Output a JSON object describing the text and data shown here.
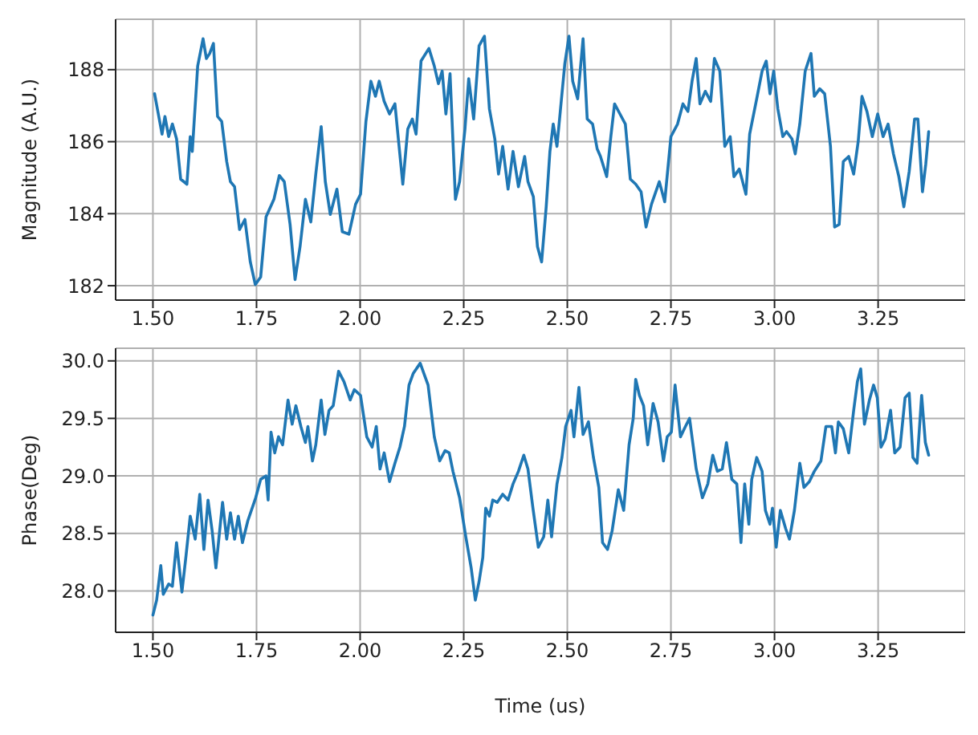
{
  "chart_data": [
    {
      "type": "line",
      "ylabel": "Magnitude  (A.U.)",
      "grid": true,
      "marker": "none",
      "line_style": "solid",
      "xlim": [
        1.41,
        3.46
      ],
      "ylim": [
        181.6,
        189.4
      ],
      "xticks": [
        {
          "value": 1.5,
          "label": "1.50"
        },
        {
          "value": 1.75,
          "label": "1.75"
        },
        {
          "value": 2.0,
          "label": "2.00"
        },
        {
          "value": 2.25,
          "label": "2.25"
        },
        {
          "value": 2.5,
          "label": "2.50"
        },
        {
          "value": 2.75,
          "label": "2.75"
        },
        {
          "value": 3.0,
          "label": "3.00"
        },
        {
          "value": 3.25,
          "label": "3.25"
        }
      ],
      "yticks": [
        182,
        184,
        186,
        188
      ],
      "series": [
        {
          "color": "#1f77b4",
          "x": [
            1.504,
            1.513,
            1.522,
            1.529,
            1.538,
            1.547,
            1.557,
            1.567,
            1.582,
            1.59,
            1.595,
            1.608,
            1.621,
            1.629,
            1.637,
            1.646,
            1.656,
            1.666,
            1.678,
            1.687,
            1.697,
            1.709,
            1.722,
            1.735,
            1.747,
            1.76,
            1.773,
            1.792,
            1.805,
            1.817,
            1.831,
            1.843,
            1.855,
            1.868,
            1.881,
            1.893,
            1.906,
            1.916,
            1.928,
            1.944,
            1.957,
            1.973,
            1.989,
            2.001,
            2.014,
            2.026,
            2.037,
            2.046,
            2.058,
            2.071,
            2.084,
            2.094,
            2.103,
            2.115,
            2.126,
            2.135,
            2.147,
            2.166,
            2.179,
            2.189,
            2.198,
            2.207,
            2.217,
            2.23,
            2.24,
            2.253,
            2.262,
            2.274,
            2.287,
            2.3,
            2.312,
            2.325,
            2.334,
            2.344,
            2.357,
            2.369,
            2.382,
            2.397,
            2.405,
            2.418,
            2.428,
            2.438,
            2.449,
            2.458,
            2.466,
            2.475,
            2.483,
            2.494,
            2.504,
            2.513,
            2.525,
            2.538,
            2.548,
            2.561,
            2.572,
            2.58,
            2.595,
            2.605,
            2.614,
            2.627,
            2.64,
            2.652,
            2.665,
            2.678,
            2.69,
            2.703,
            2.722,
            2.735,
            2.75,
            2.766,
            2.779,
            2.791,
            2.801,
            2.811,
            2.82,
            2.833,
            2.846,
            2.855,
            2.868,
            2.88,
            2.893,
            2.902,
            2.915,
            2.931,
            2.94,
            2.957,
            2.97,
            2.98,
            2.989,
            2.998,
            3.008,
            3.02,
            3.029,
            3.042,
            3.05,
            3.061,
            3.074,
            3.088,
            3.096,
            3.109,
            3.121,
            3.135,
            3.145,
            3.156,
            3.166,
            3.179,
            3.191,
            3.202,
            3.211,
            3.223,
            3.236,
            3.249,
            3.262,
            3.274,
            3.287,
            3.3,
            3.312,
            3.325,
            3.338,
            3.346,
            3.357,
            3.365,
            3.372
          ],
          "values": [
            187.33,
            186.77,
            186.21,
            186.7,
            186.14,
            186.49,
            186.08,
            184.96,
            184.82,
            186.14,
            185.73,
            188.1,
            188.86,
            188.31,
            188.45,
            188.73,
            186.7,
            186.56,
            185.45,
            184.89,
            184.75,
            183.56,
            183.84,
            182.66,
            182.03,
            182.24,
            183.91,
            184.4,
            185.06,
            184.89,
            183.7,
            182.17,
            183.08,
            184.4,
            183.77,
            185.1,
            186.42,
            184.89,
            183.98,
            184.68,
            183.5,
            183.43,
            184.26,
            184.54,
            186.56,
            187.68,
            187.26,
            187.68,
            187.12,
            186.77,
            187.05,
            185.87,
            184.82,
            186.35,
            186.63,
            186.21,
            188.24,
            188.59,
            188.1,
            187.61,
            187.96,
            186.77,
            187.89,
            184.4,
            184.89,
            186.35,
            187.75,
            186.63,
            188.66,
            188.93,
            186.91,
            186.08,
            185.1,
            185.87,
            184.68,
            185.73,
            184.75,
            185.59,
            184.89,
            184.47,
            183.08,
            182.66,
            184.19,
            185.73,
            186.49,
            185.87,
            186.84,
            188.17,
            188.93,
            187.68,
            187.19,
            188.86,
            186.63,
            186.49,
            185.8,
            185.59,
            185.03,
            186.14,
            187.05,
            186.77,
            186.49,
            184.96,
            184.82,
            184.61,
            183.63,
            184.26,
            184.89,
            184.33,
            186.14,
            186.49,
            187.05,
            186.84,
            187.68,
            188.31,
            187.05,
            187.4,
            187.12,
            188.31,
            187.96,
            185.87,
            186.14,
            185.03,
            185.24,
            184.54,
            186.21,
            187.19,
            187.96,
            188.24,
            187.33,
            187.96,
            186.91,
            186.14,
            186.28,
            186.08,
            185.66,
            186.49,
            187.96,
            188.45,
            187.26,
            187.47,
            187.33,
            185.87,
            183.63,
            183.7,
            185.45,
            185.59,
            185.1,
            186.01,
            187.26,
            186.84,
            186.14,
            186.77,
            186.14,
            186.49,
            185.66,
            185.03,
            184.19,
            185.17,
            186.63,
            186.63,
            184.61,
            185.38,
            186.28
          ]
        }
      ]
    },
    {
      "type": "line",
      "xlabel": "Time (us)",
      "ylabel": "Phase(Deg)",
      "grid": true,
      "marker": "none",
      "line_style": "solid",
      "xlim": [
        1.41,
        3.46
      ],
      "ylim": [
        27.64,
        30.11
      ],
      "xticks": [
        {
          "value": 1.5,
          "label": "1.50"
        },
        {
          "value": 1.75,
          "label": "1.75"
        },
        {
          "value": 2.0,
          "label": "2.00"
        },
        {
          "value": 2.25,
          "label": "2.25"
        },
        {
          "value": 2.5,
          "label": "2.50"
        },
        {
          "value": 2.75,
          "label": "2.75"
        },
        {
          "value": 3.0,
          "label": "3.00"
        },
        {
          "value": 3.25,
          "label": "3.25"
        }
      ],
      "yticks": [
        {
          "value": 28.0,
          "label": "28.0"
        },
        {
          "value": 28.5,
          "label": "28.5"
        },
        {
          "value": 29.0,
          "label": "29.0"
        },
        {
          "value": 29.5,
          "label": "29.5"
        },
        {
          "value": 30.0,
          "label": "30.0"
        }
      ],
      "series": [
        {
          "color": "#1f77b4",
          "x": [
            1.5,
            1.509,
            1.519,
            1.525,
            1.538,
            1.547,
            1.557,
            1.57,
            1.58,
            1.59,
            1.602,
            1.613,
            1.623,
            1.633,
            1.643,
            1.652,
            1.668,
            1.678,
            1.687,
            1.697,
            1.706,
            1.716,
            1.729,
            1.748,
            1.76,
            1.773,
            1.778,
            1.785,
            1.794,
            1.803,
            1.813,
            1.826,
            1.836,
            1.845,
            1.857,
            1.868,
            1.874,
            1.885,
            1.893,
            1.906,
            1.915,
            1.925,
            1.935,
            1.948,
            1.961,
            1.976,
            1.986,
            2.001,
            2.016,
            2.029,
            2.039,
            2.048,
            2.058,
            2.071,
            2.084,
            2.096,
            2.107,
            2.118,
            2.128,
            2.145,
            2.154,
            2.164,
            2.179,
            2.192,
            2.205,
            2.215,
            2.224,
            2.24,
            2.255,
            2.268,
            2.278,
            2.287,
            2.296,
            2.303,
            2.312,
            2.32,
            2.331,
            2.344,
            2.357,
            2.369,
            2.382,
            2.395,
            2.405,
            2.417,
            2.43,
            2.443,
            2.453,
            2.462,
            2.475,
            2.487,
            2.496,
            2.509,
            2.516,
            2.528,
            2.538,
            2.551,
            2.563,
            2.576,
            2.585,
            2.597,
            2.608,
            2.623,
            2.636,
            2.649,
            2.659,
            2.665,
            2.674,
            2.684,
            2.694,
            2.707,
            2.719,
            2.732,
            2.741,
            2.751,
            2.76,
            2.773,
            2.785,
            2.795,
            2.811,
            2.826,
            2.839,
            2.851,
            2.862,
            2.874,
            2.884,
            2.897,
            2.909,
            2.919,
            2.928,
            2.938,
            2.945,
            2.957,
            2.97,
            2.978,
            2.989,
            2.995,
            3.004,
            3.014,
            3.027,
            3.036,
            3.048,
            3.061,
            3.071,
            3.084,
            3.096,
            3.112,
            3.124,
            3.138,
            3.147,
            3.154,
            3.166,
            3.179,
            3.191,
            3.2,
            3.208,
            3.217,
            3.229,
            3.239,
            3.248,
            3.257,
            3.267,
            3.28,
            3.29,
            3.303,
            3.315,
            3.325,
            3.334,
            3.344,
            3.355,
            3.364,
            3.372
          ],
          "values": [
            27.79,
            27.92,
            28.22,
            27.97,
            28.06,
            28.04,
            28.42,
            27.99,
            28.31,
            28.65,
            28.45,
            28.84,
            28.36,
            28.79,
            28.52,
            28.2,
            28.77,
            28.45,
            28.68,
            28.45,
            28.65,
            28.42,
            28.61,
            28.81,
            28.97,
            29.0,
            28.79,
            29.38,
            29.2,
            29.34,
            29.27,
            29.66,
            29.45,
            29.61,
            29.43,
            29.29,
            29.43,
            29.13,
            29.27,
            29.66,
            29.36,
            29.57,
            29.61,
            29.91,
            29.82,
            29.66,
            29.75,
            29.7,
            29.34,
            29.25,
            29.43,
            29.06,
            29.2,
            28.95,
            29.11,
            29.25,
            29.43,
            29.79,
            29.89,
            29.98,
            29.89,
            29.79,
            29.34,
            29.13,
            29.22,
            29.2,
            29.04,
            28.81,
            28.47,
            28.2,
            27.92,
            28.08,
            28.29,
            28.72,
            28.65,
            28.79,
            28.77,
            28.84,
            28.79,
            28.93,
            29.04,
            29.18,
            29.06,
            28.72,
            28.38,
            28.47,
            28.79,
            28.47,
            28.93,
            29.16,
            29.43,
            29.57,
            29.34,
            29.77,
            29.36,
            29.47,
            29.16,
            28.9,
            28.42,
            28.36,
            28.52,
            28.88,
            28.7,
            29.27,
            29.5,
            29.84,
            29.7,
            29.61,
            29.27,
            29.63,
            29.47,
            29.13,
            29.34,
            29.38,
            29.79,
            29.34,
            29.43,
            29.5,
            29.06,
            28.81,
            28.93,
            29.18,
            29.04,
            29.06,
            29.29,
            28.97,
            28.93,
            28.42,
            28.93,
            28.58,
            28.97,
            29.16,
            29.04,
            28.7,
            28.58,
            28.72,
            28.38,
            28.7,
            28.54,
            28.45,
            28.7,
            29.11,
            28.9,
            28.95,
            29.04,
            29.13,
            29.43,
            29.43,
            29.2,
            29.47,
            29.41,
            29.2,
            29.57,
            29.82,
            29.93,
            29.45,
            29.66,
            29.79,
            29.68,
            29.25,
            29.32,
            29.57,
            29.2,
            29.25,
            29.68,
            29.72,
            29.16,
            29.11,
            29.7,
            29.29,
            29.18
          ]
        }
      ]
    }
  ]
}
